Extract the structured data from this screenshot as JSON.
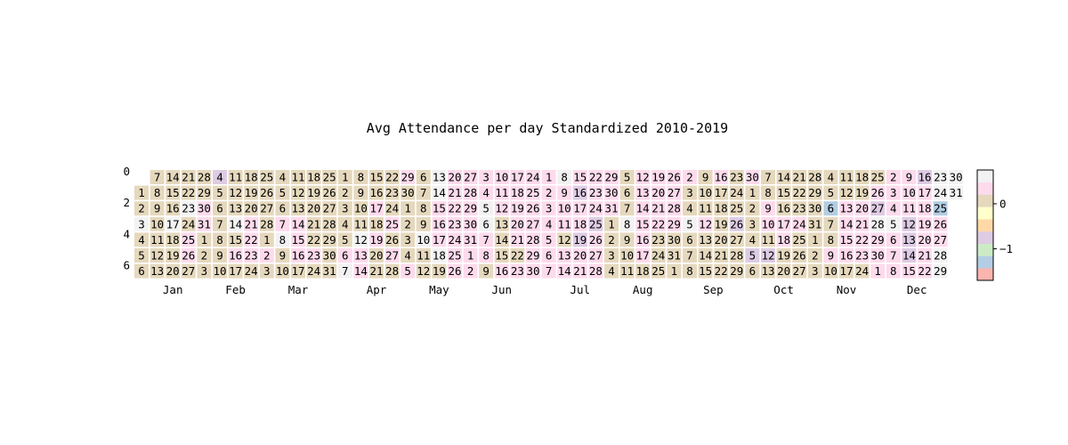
{
  "chart_data": {
    "type": "heatmap",
    "title": "Avg Attendance per day Standardized 2010-2019",
    "year_of_days": 2019,
    "x_tick_labels": [
      "Jan",
      "Feb",
      "Mar",
      "Apr",
      "May",
      "Jun",
      "Jul",
      "Aug",
      "Sep",
      "Oct",
      "Nov",
      "Dec"
    ],
    "y_tick_labels": [
      "0",
      "2",
      "4",
      "6"
    ],
    "colorbar": {
      "ticks": [
        0,
        -1
      ],
      "tick_labels": [
        "0",
        "−1"
      ],
      "range": [
        -1.7,
        0.75
      ],
      "colormap": [
        "#fbb4ae",
        "#b3cde3",
        "#ccebc5",
        "#decbe4",
        "#fed9a6",
        "#ffffcc",
        "#e5d8bd",
        "#fddaec",
        "#f2f2f2"
      ]
    },
    "default_value": -0.05,
    "special_values": {
      "2019-01-03": 0.55,
      "2019-01-17": 0.55,
      "2019-01-23": 0.55,
      "2019-01-25": 0.3,
      "2019-01-26": 0.45,
      "2019-01-30": 0.35,
      "2019-01-31": 0.45,
      "2019-02-04": -0.85,
      "2019-02-05": 0.2,
      "2019-02-14": 0.55,
      "2019-02-16": 0.45,
      "2019-02-21": 0.35,
      "2019-02-22": 0.35,
      "2019-02-23": 0.35,
      "2019-03-02": 0.45,
      "2019-03-06": 0.2,
      "2019-03-07": 0.45,
      "2019-03-08": 0.55,
      "2019-03-14": 0.35,
      "2019-03-15": 0.35,
      "2019-03-16": 0.45,
      "2019-03-23": 0.35,
      "2019-03-24": -0.05,
      "2019-03-25": 0.2,
      "2019-04-03": 0.2,
      "2019-04-06": 0.25,
      "2019-04-07": 0.55,
      "2019-04-08": 0.2,
      "2019-04-09": 0.2,
      "2019-04-12": 0.55,
      "2019-04-13": 0.25,
      "2019-04-14": 0.25,
      "2019-04-15": 0.2,
      "2019-04-16": 0.2,
      "2019-04-17": 0.25,
      "2019-04-18": 0.2,
      "2019-04-19": 0.35,
      "2019-04-20": 0.2,
      "2019-04-21": 0.2,
      "2019-04-25": 0.35,
      "2019-04-26": 0.2,
      "2019-04-27": 0.45,
      "2019-04-28": 0.2,
      "2019-04-29": 0.35,
      "2019-04-30": 0.2,
      "2019-05-05": 0.45,
      "2019-05-10": 0.55,
      "2019-05-12": 0.2,
      "2019-05-13": 0.55,
      "2019-05-14": 0.55,
      "2019-05-15": 0.45,
      "2019-05-16": 0.45,
      "2019-05-17": 0.35,
      "2019-05-18": 0.55,
      "2019-05-20": 0.45,
      "2019-05-21": 0.45,
      "2019-05-22": 0.35,
      "2019-05-23": 0.35,
      "2019-05-24": 0.35,
      "2019-05-25": 0.45,
      "2019-05-26": 0.45,
      "2019-05-27": 0.35,
      "2019-05-28": 0.45,
      "2019-05-29": 0.45,
      "2019-05-30": 0.35,
      "2019-05-31": 0.35,
      "2019-06-01": 0.35,
      "2019-06-02": 0.45,
      "2019-06-03": 0.35,
      "2019-06-04": 0.35,
      "2019-06-05": 0.55,
      "2019-06-06": 0.55,
      "2019-06-07": 0.45,
      "2019-06-08": 0.35,
      "2019-06-09": 0.2,
      "2019-06-10": 0.35,
      "2019-06-11": 0.35,
      "2019-06-12": 0.35,
      "2019-06-13": 0.2,
      "2019-06-14": 0.2,
      "2019-06-15": 0.2,
      "2019-06-16": 0.45,
      "2019-06-17": 0.45,
      "2019-06-18": 0.35,
      "2019-06-19": 0.35,
      "2019-06-20": 0.35,
      "2019-06-21": 0.45,
      "2019-06-22": 0.2,
      "2019-06-23": 0.35,
      "2019-06-24": 0.35,
      "2019-06-25": 0.35,
      "2019-06-26": 0.45,
      "2019-06-27": 0.45,
      "2019-06-28": 0.35,
      "2019-06-29": 0.35,
      "2019-06-30": 0.45,
      "2019-07-01": 0.45,
      "2019-07-02": 0.45,
      "2019-07-03": 0.35,
      "2019-07-04": 0.45,
      "2019-07-05": 0.35,
      "2019-07-06": 0.35,
      "2019-07-07": 0.35,
      "2019-07-08": 0.55,
      "2019-07-09": 0.35,
      "2019-07-10": 0.35,
      "2019-07-11": 0.45,
      "2019-07-12": 0.2,
      "2019-07-13": 0.35,
      "2019-07-14": 0.35,
      "2019-07-15": 0.35,
      "2019-07-16": -0.85,
      "2019-07-17": 0.35,
      "2019-07-18": 0.35,
      "2019-07-19": -0.85,
      "2019-07-20": 0.35,
      "2019-07-21": 0.35,
      "2019-07-22": 0.35,
      "2019-07-23": 0.35,
      "2019-07-24": 0.35,
      "2019-07-25": -0.85,
      "2019-07-26": 0.35,
      "2019-07-27": 0.45,
      "2019-07-28": 0.35,
      "2019-07-29": 0.35,
      "2019-07-30": 0.35,
      "2019-07-31": 0.35,
      "2019-08-08": 0.55,
      "2019-08-12": 0.35,
      "2019-08-13": 0.35,
      "2019-08-14": 0.35,
      "2019-08-15": 0.35,
      "2019-08-16": 0.35,
      "2019-08-17": 0.45,
      "2019-08-19": 0.35,
      "2019-08-20": 0.35,
      "2019-08-21": 0.35,
      "2019-08-22": 0.35,
      "2019-08-26": 0.35,
      "2019-08-27": 0.35,
      "2019-08-28": 0.35,
      "2019-08-29": 0.35,
      "2019-09-02": 0.35,
      "2019-09-05": 0.55,
      "2019-09-12": 0.45,
      "2019-09-16": 0.35,
      "2019-09-26": -0.85,
      "2019-09-30": 0.35,
      "2019-10-05": -0.85,
      "2019-10-09": 0.35,
      "2019-10-10": 0.35,
      "2019-10-12": -0.85,
      "2019-10-17": 0.35,
      "2019-10-18": 0.35,
      "2019-10-24": 0.35,
      "2019-11-06": -1.3,
      "2019-11-09": 0.45,
      "2019-11-13": 0.35,
      "2019-11-14": 0.35,
      "2019-11-15": 0.35,
      "2019-11-16": 0.35,
      "2019-11-20": 0.35,
      "2019-11-21": 0.35,
      "2019-11-22": 0.35,
      "2019-11-23": 0.35,
      "2019-11-26": 0.35,
      "2019-11-27": -0.85,
      "2019-11-28": 0.55,
      "2019-11-29": 0.35,
      "2019-11-30": 0.35,
      "2019-12-01": 0.35,
      "2019-12-02": 0.35,
      "2019-12-03": 0.35,
      "2019-12-04": 0.35,
      "2019-12-05": 0.55,
      "2019-12-06": 0.35,
      "2019-12-07": 0.35,
      "2019-12-08": 0.35,
      "2019-12-09": 0.35,
      "2019-12-10": 0.35,
      "2019-12-11": 0.35,
      "2019-12-12": -0.85,
      "2019-12-13": -0.85,
      "2019-12-14": -0.85,
      "2019-12-15": 0.35,
      "2019-12-16": -0.85,
      "2019-12-17": 0.35,
      "2019-12-18": 0.35,
      "2019-12-19": 0.45,
      "2019-12-20": 0.35,
      "2019-12-21": 0.45,
      "2019-12-22": 0.45,
      "2019-12-23": 0.55,
      "2019-12-24": 0.55,
      "2019-12-25": -1.3,
      "2019-12-26": 0.45,
      "2019-12-27": 0.45,
      "2019-12-28": 0.55,
      "2019-12-29": 0.55,
      "2019-12-30": 0.55,
      "2019-12-31": 0.55
    }
  }
}
